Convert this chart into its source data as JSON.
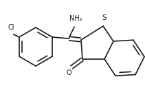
{
  "bg_color": "#ffffff",
  "line_color": "#1a1a1a",
  "line_width": 1.2,
  "font_size_label": 7.0,
  "figsize": [
    2.11,
    1.28
  ],
  "dpi": 100,
  "cl_label": "Cl",
  "nh2_label": "NH₂",
  "o_label": "O",
  "s_label": "S"
}
